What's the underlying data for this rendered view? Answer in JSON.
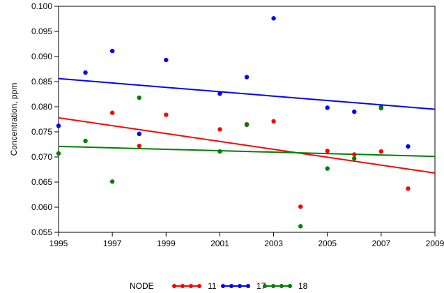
{
  "chart_data": {
    "type": "scatter",
    "title": "",
    "xlabel": "",
    "ylabel": "Concentration, ppm",
    "xlim": [
      1995,
      2009
    ],
    "ylim": [
      0.055,
      0.1
    ],
    "xticks": [
      "1995",
      "1997",
      "1999",
      "2001",
      "2003",
      "2005",
      "2007",
      "2009"
    ],
    "yticks": [
      "0.055",
      "0.060",
      "0.065",
      "0.070",
      "0.075",
      "0.080",
      "0.085",
      "0.090",
      "0.095",
      "0.100"
    ],
    "grid": false,
    "legend": {
      "position": "bottom",
      "title": "NODE"
    },
    "series": [
      {
        "name": "11",
        "color": "#ff0000",
        "points": [
          [
            1997,
            0.0788
          ],
          [
            1998,
            0.0722
          ],
          [
            1999,
            0.0784
          ],
          [
            2001,
            0.0755
          ],
          [
            2002,
            0.0765
          ],
          [
            2003,
            0.0771
          ],
          [
            2004,
            0.0601
          ],
          [
            2005,
            0.0712
          ],
          [
            2006,
            0.0705
          ],
          [
            2007,
            0.0711
          ],
          [
            2008,
            0.0637
          ]
        ],
        "trend": [
          [
            1995,
            0.0778
          ],
          [
            2009,
            0.0668
          ]
        ]
      },
      {
        "name": "17",
        "color": "#0000ff",
        "points": [
          [
            1995,
            0.0762
          ],
          [
            1996,
            0.0868
          ],
          [
            1997,
            0.0911
          ],
          [
            1998,
            0.0746
          ],
          [
            1999,
            0.0893
          ],
          [
            2001,
            0.0826
          ],
          [
            2002,
            0.0859
          ],
          [
            2003,
            0.0976
          ],
          [
            2005,
            0.0798
          ],
          [
            2006,
            0.079
          ],
          [
            2007,
            0.0799
          ],
          [
            2008,
            0.0721
          ]
        ],
        "trend": [
          [
            1995,
            0.0856
          ],
          [
            2009,
            0.0795
          ]
        ]
      },
      {
        "name": "18",
        "color": "#008000",
        "points": [
          [
            1995,
            0.0707
          ],
          [
            1996,
            0.0732
          ],
          [
            1997,
            0.0651
          ],
          [
            1998,
            0.0818
          ],
          [
            2001,
            0.0711
          ],
          [
            2002,
            0.0764
          ],
          [
            2004,
            0.0562
          ],
          [
            2005,
            0.0677
          ],
          [
            2006,
            0.0697
          ],
          [
            2007,
            0.0797
          ]
        ],
        "trend": [
          [
            1995,
            0.0721
          ],
          [
            2009,
            0.0701
          ]
        ]
      }
    ]
  }
}
